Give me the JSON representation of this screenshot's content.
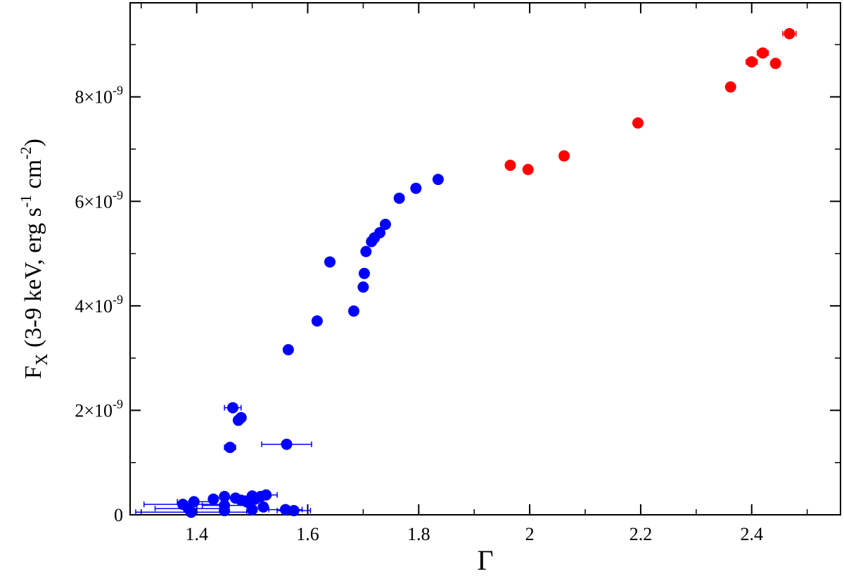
{
  "chart_data": {
    "type": "scatter",
    "title": "",
    "xlabel": "Γ",
    "ylabel": {
      "main": "F",
      "sub": "X",
      "text": " (3-9 keV, erg s",
      "exp1": "-1",
      "mid": " cm",
      "exp2": "-2",
      "close": ")"
    },
    "xlim": [
      1.28,
      2.56
    ],
    "ylim": [
      0,
      9.8e-09
    ],
    "grid": false,
    "legend": "none",
    "x_ticks": [
      {
        "value": 1.4,
        "label": "1.4"
      },
      {
        "value": 1.6,
        "label": "1.6"
      },
      {
        "value": 1.8,
        "label": "1.8"
      },
      {
        "value": 2.0,
        "label": "2"
      },
      {
        "value": 2.2,
        "label": "2.2"
      },
      {
        "value": 2.4,
        "label": "2.4"
      }
    ],
    "x_minor_step": 0.1,
    "y_ticks": [
      {
        "value": 0,
        "mant": "0",
        "exp": ""
      },
      {
        "value": 2e-09,
        "mant": "2×10",
        "exp": "-9"
      },
      {
        "value": 4e-09,
        "mant": "4×10",
        "exp": "-9"
      },
      {
        "value": 6e-09,
        "mant": "6×10",
        "exp": "-9"
      },
      {
        "value": 8e-09,
        "mant": "8×10",
        "exp": "-9"
      }
    ],
    "y_minor_step": 1e-09,
    "series": [
      {
        "color": "#0000ff",
        "points": [
          {
            "x": 1.835,
            "y": 6.42e-09
          },
          {
            "x": 1.795,
            "y": 6.25e-09
          },
          {
            "x": 1.765,
            "y": 6.06e-09
          },
          {
            "x": 1.74,
            "y": 5.56e-09
          },
          {
            "x": 1.73,
            "y": 5.4e-09
          },
          {
            "x": 1.72,
            "y": 5.3e-09
          },
          {
            "x": 1.715,
            "y": 5.23e-09
          },
          {
            "x": 1.705,
            "y": 5.04e-09
          },
          {
            "x": 1.702,
            "y": 4.62e-09
          },
          {
            "x": 1.7,
            "y": 4.36e-09
          },
          {
            "x": 1.683,
            "y": 3.9e-09
          },
          {
            "x": 1.64,
            "y": 4.84e-09
          },
          {
            "x": 1.617,
            "y": 3.71e-09
          },
          {
            "x": 1.565,
            "y": 3.16e-09
          },
          {
            "x": 1.465,
            "y": 2.05e-09,
            "xerr": 0.015
          },
          {
            "x": 1.48,
            "y": 1.86e-09
          },
          {
            "x": 1.475,
            "y": 1.81e-09
          },
          {
            "x": 1.46,
            "y": 1.29e-09,
            "xerr": 0.01
          },
          {
            "x": 1.562,
            "y": 1.35e-09,
            "xerr": 0.045
          },
          {
            "x": 1.525,
            "y": 3.8e-10,
            "xerr": 0.02
          },
          {
            "x": 1.515,
            "y": 3.5e-10
          },
          {
            "x": 1.505,
            "y": 3e-10
          },
          {
            "x": 1.5,
            "y": 3.6e-10,
            "xerr": 0.03
          },
          {
            "x": 1.49,
            "y": 2.5e-10
          },
          {
            "x": 1.48,
            "y": 2.8e-10
          },
          {
            "x": 1.47,
            "y": 3.2e-10
          },
          {
            "x": 1.45,
            "y": 3.5e-10
          },
          {
            "x": 1.45,
            "y": 1.8e-10,
            "xerr": 0.04
          },
          {
            "x": 1.43,
            "y": 3e-10
          },
          {
            "x": 1.395,
            "y": 2.5e-10,
            "xerr": 0.03
          },
          {
            "x": 1.375,
            "y": 2e-10,
            "xerr": 0.07
          },
          {
            "x": 1.385,
            "y": 1.2e-10,
            "xerr": 0.06
          },
          {
            "x": 1.39,
            "y": 5e-11,
            "xerr": 0.1
          },
          {
            "x": 1.45,
            "y": 8e-11
          },
          {
            "x": 1.5,
            "y": 1e-10
          },
          {
            "x": 1.52,
            "y": 1.5e-10
          },
          {
            "x": 1.56,
            "y": 1e-10,
            "xerr": 0.03
          },
          {
            "x": 1.575,
            "y": 8e-11,
            "xerr": 0.03
          }
        ]
      },
      {
        "color": "#ff0000",
        "points": [
          {
            "x": 1.965,
            "y": 6.69e-09
          },
          {
            "x": 1.997,
            "y": 6.61e-09
          },
          {
            "x": 2.062,
            "y": 6.87e-09
          },
          {
            "x": 2.195,
            "y": 7.5e-09
          },
          {
            "x": 2.362,
            "y": 8.19e-09
          },
          {
            "x": 2.4,
            "y": 8.67e-09,
            "xerr": 0.01
          },
          {
            "x": 2.42,
            "y": 8.84e-09,
            "xerr": 0.01
          },
          {
            "x": 2.443,
            "y": 8.64e-09,
            "xerr": 0.008
          },
          {
            "x": 2.468,
            "y": 9.21e-09,
            "xerr": 0.012
          }
        ]
      }
    ]
  }
}
